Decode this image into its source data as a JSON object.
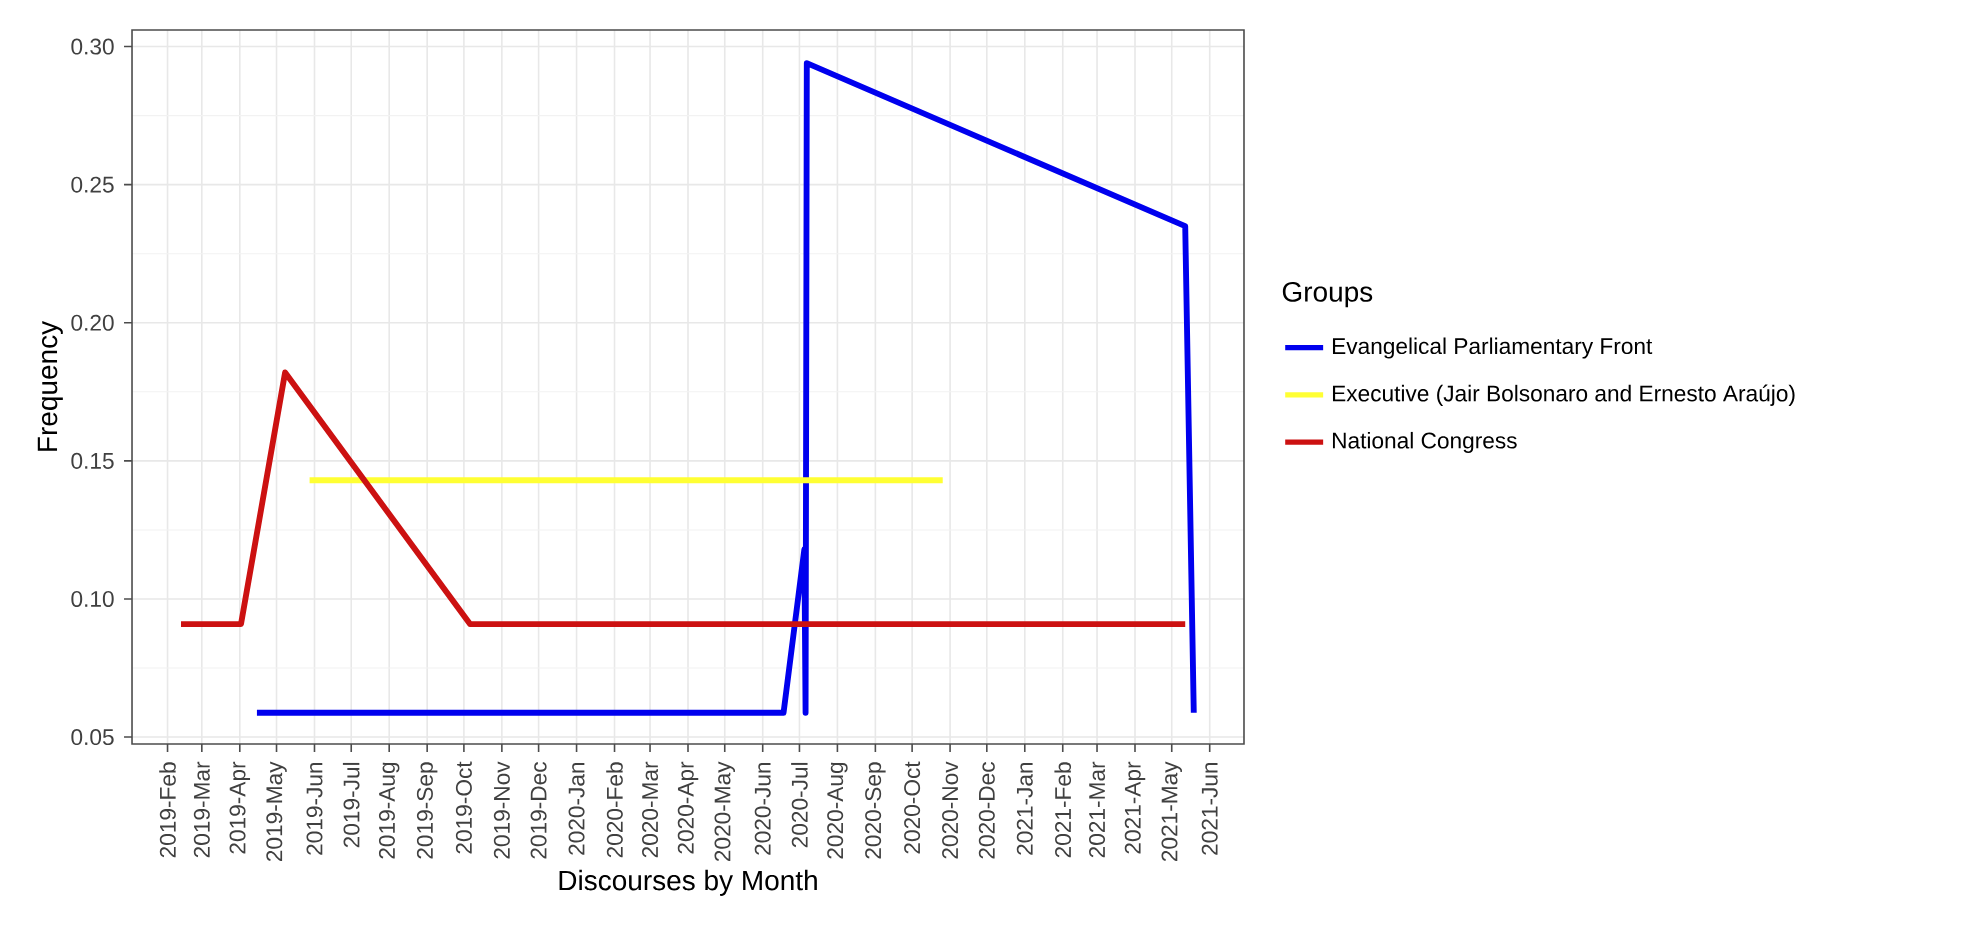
{
  "chart_data": {
    "type": "line",
    "xlabel": "Discourses by Month",
    "ylabel": "Frequency",
    "legend_title": "Groups",
    "legend": "right",
    "grid": true,
    "line_style": "solid",
    "xlim": [
      "2019-01-03",
      "2021-06-29"
    ],
    "ylim": [
      0.0475,
      0.306
    ],
    "xticks": [
      {
        "value": "2019-02",
        "label": "2019-Feb"
      },
      {
        "value": "2019-03",
        "label": "2019-Mar"
      },
      {
        "value": "2019-04",
        "label": "2019-Apr"
      },
      {
        "value": "2019-05",
        "label": "2019-May"
      },
      {
        "value": "2019-06",
        "label": "2019-Jun"
      },
      {
        "value": "2019-07",
        "label": "2019-Jul"
      },
      {
        "value": "2019-08",
        "label": "2019-Aug"
      },
      {
        "value": "2019-09",
        "label": "2019-Sep"
      },
      {
        "value": "2019-10",
        "label": "2019-Oct"
      },
      {
        "value": "2019-11",
        "label": "2019-Nov"
      },
      {
        "value": "2019-12",
        "label": "2019-Dec"
      },
      {
        "value": "2020-01",
        "label": "2020-Jan"
      },
      {
        "value": "2020-02",
        "label": "2020-Feb"
      },
      {
        "value": "2020-03",
        "label": "2020-Mar"
      },
      {
        "value": "2020-04",
        "label": "2020-Apr"
      },
      {
        "value": "2020-05",
        "label": "2020-May"
      },
      {
        "value": "2020-06",
        "label": "2020-Jun"
      },
      {
        "value": "2020-07",
        "label": "2020-Jul"
      },
      {
        "value": "2020-08",
        "label": "2020-Aug"
      },
      {
        "value": "2020-09",
        "label": "2020-Sep"
      },
      {
        "value": "2020-10",
        "label": "2020-Oct"
      },
      {
        "value": "2020-11",
        "label": "2020-Nov"
      },
      {
        "value": "2020-12",
        "label": "2020-Dec"
      },
      {
        "value": "2021-01",
        "label": "2021-Jan"
      },
      {
        "value": "2021-02",
        "label": "2021-Feb"
      },
      {
        "value": "2021-03",
        "label": "2021-Mar"
      },
      {
        "value": "2021-04",
        "label": "2021-Apr"
      },
      {
        "value": "2021-05",
        "label": "2021-May"
      },
      {
        "value": "2021-06",
        "label": "2021-Jun"
      }
    ],
    "yticks": [
      {
        "value": 0.05,
        "label": "0.05"
      },
      {
        "value": 0.1,
        "label": "0.10"
      },
      {
        "value": 0.15,
        "label": "0.15"
      },
      {
        "value": 0.2,
        "label": "0.20"
      },
      {
        "value": 0.25,
        "label": "0.25"
      },
      {
        "value": 0.3,
        "label": "0.30"
      }
    ],
    "series": [
      {
        "name": "Evangelical Parliamentary Front",
        "color": "#0000ee",
        "x": [
          "2019-04-15",
          "2020-06-18",
          "2020-07-05",
          "2020-07-06",
          "2020-07-07",
          "2021-05-12",
          "2021-05-19"
        ],
        "values": [
          0.0588,
          0.0588,
          0.118,
          0.0588,
          0.294,
          0.235,
          0.0588
        ]
      },
      {
        "name": "Executive (Jair Bolsonaro and Ernesto Araújo)",
        "color": "#ffff33",
        "x": [
          "2019-05-28",
          "2020-10-26"
        ],
        "values": [
          0.143,
          0.143
        ]
      },
      {
        "name": "National Congress",
        "color": "#cc1111",
        "x": [
          "2019-02-12",
          "2019-04-02",
          "2019-05-08",
          "2019-10-06",
          "2021-05-12"
        ],
        "values": [
          0.0909,
          0.0909,
          0.182,
          0.0909,
          0.0909
        ]
      }
    ]
  }
}
